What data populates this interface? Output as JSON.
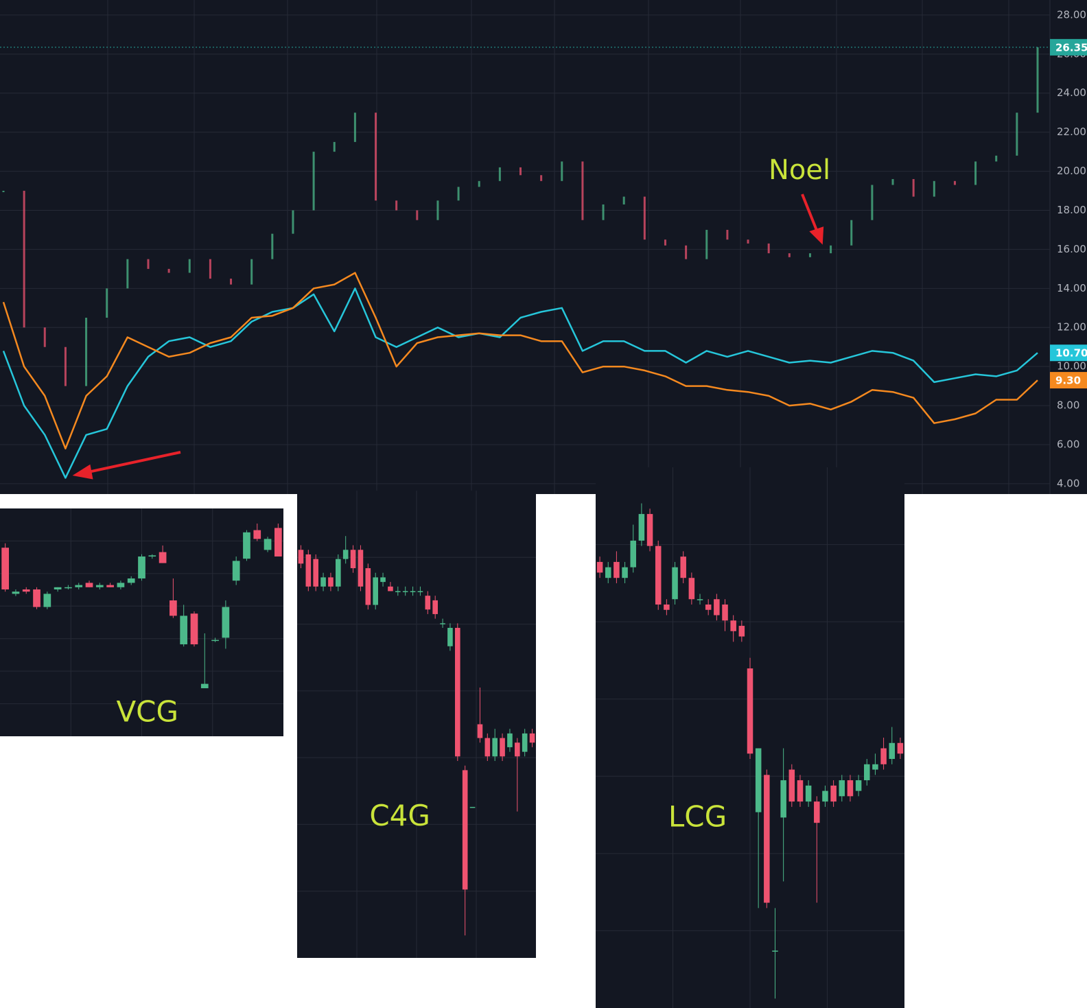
{
  "chart_data": [
    {
      "type": "line",
      "ylim": [
        3.47,
        28.77
      ],
      "yticks": [
        {
          "value": 4,
          "label": "4.00"
        },
        {
          "value": 6,
          "label": "6.00"
        },
        {
          "value": 8,
          "label": "8.00"
        },
        {
          "value": 10,
          "label": "10.00"
        },
        {
          "value": 12,
          "label": "12.00"
        },
        {
          "value": 14,
          "label": "14.00"
        },
        {
          "value": 16,
          "label": "16.00"
        },
        {
          "value": 18,
          "label": "18.00"
        },
        {
          "value": 20,
          "label": "20.00"
        },
        {
          "value": 22,
          "label": "22.00"
        },
        {
          "value": 24,
          "label": "24.00"
        },
        {
          "value": 26,
          "label": "26.00"
        },
        {
          "value": 28,
          "label": "28.00"
        }
      ],
      "grid": true,
      "series": [
        {
          "up_color": "#4cb98a",
          "down_color": "#ef5370",
          "label_color": "#26a69a",
          "values": [
            19,
            12,
            11,
            9,
            12.5,
            14,
            15.5,
            15,
            14.8,
            15.5,
            14.5,
            14.2,
            15.5,
            16.8,
            18,
            21,
            21.5,
            23,
            18.5,
            18,
            17.5,
            18.5,
            19.2,
            19.5,
            20.2,
            19.8,
            19.5,
            20.5,
            17.5,
            18.3,
            18.7,
            16.5,
            16.2,
            15.5,
            17,
            16.5,
            16.3,
            15.8,
            15.6,
            15.8,
            16.2,
            17.5,
            19.3,
            19.6,
            18.7,
            19.5,
            19.3,
            20.5,
            20.8,
            23,
            26.35
          ],
          "value_labels": [
            null,
            null,
            null,
            null,
            null,
            null,
            null,
            null,
            null,
            null,
            null,
            null,
            null,
            null,
            null,
            null,
            null,
            null,
            null,
            null,
            null,
            null,
            null,
            null,
            null,
            null,
            null,
            null,
            null,
            null,
            null,
            null,
            null,
            null,
            null,
            null,
            null,
            null,
            null,
            null,
            null,
            null,
            null,
            null,
            null,
            null,
            null,
            null,
            null,
            null,
            "26.35"
          ]
        },
        {
          "color": "#26c6da",
          "values": [
            10.8,
            8,
            6.5,
            4.3,
            6.5,
            6.8,
            9,
            10.5,
            11.3,
            11.5,
            11,
            11.3,
            12.3,
            12.8,
            13,
            13.7,
            11.8,
            14,
            11.5,
            11,
            11.5,
            12,
            11.5,
            11.7,
            11.5,
            12.5,
            12.8,
            13,
            10.8,
            11.3,
            11.3,
            10.8,
            10.8,
            10.2,
            10.8,
            10.5,
            10.8,
            10.5,
            10.2,
            10.3,
            10.2,
            10.5,
            10.8,
            10.7,
            10.3,
            9.2,
            9.4,
            9.6,
            9.5,
            9.8,
            10.7
          ],
          "value_labels": [
            null,
            null,
            null,
            null,
            null,
            null,
            null,
            null,
            null,
            null,
            null,
            null,
            null,
            null,
            null,
            null,
            null,
            null,
            null,
            null,
            null,
            null,
            null,
            null,
            null,
            null,
            null,
            null,
            null,
            null,
            null,
            null,
            null,
            null,
            null,
            null,
            null,
            null,
            null,
            null,
            null,
            null,
            null,
            null,
            null,
            null,
            null,
            null,
            null,
            null,
            "10.70"
          ]
        },
        {
          "color": "#f5891f",
          "values": [
            13.3,
            10,
            8.5,
            5.8,
            8.5,
            9.5,
            11.5,
            11,
            10.5,
            10.7,
            11.2,
            11.5,
            12.5,
            12.6,
            13,
            14,
            14.2,
            14.8,
            12.5,
            10,
            11.2,
            11.5,
            11.6,
            11.7,
            11.6,
            11.6,
            11.3,
            11.3,
            9.7,
            10,
            10,
            9.8,
            9.5,
            9,
            9,
            8.8,
            8.7,
            8.5,
            8,
            8.1,
            7.8,
            8.2,
            8.8,
            8.7,
            8.4,
            7.1,
            7.3,
            7.6,
            8.3,
            8.3,
            9.3
          ],
          "value_labels": [
            null,
            null,
            null,
            null,
            null,
            null,
            null,
            null,
            null,
            null,
            null,
            null,
            null,
            null,
            null,
            null,
            null,
            null,
            null,
            null,
            null,
            null,
            null,
            null,
            null,
            null,
            null,
            null,
            null,
            null,
            null,
            null,
            null,
            null,
            null,
            null,
            null,
            null,
            null,
            null,
            null,
            null,
            null,
            null,
            null,
            null,
            null,
            null,
            null,
            null,
            "9.30"
          ]
        }
      ],
      "annotations": [
        "Noel"
      ]
    },
    {
      "type": "candlestick",
      "title": "VCG",
      "ylim": [
        0,
        100
      ],
      "up_color": "#4cb98a",
      "down_color": "#ef5370",
      "open": [
        84,
        63,
        65,
        65,
        57,
        65,
        66,
        66,
        68,
        66,
        67,
        66,
        68,
        70,
        80,
        82,
        60,
        40,
        54,
        20,
        42,
        43,
        69,
        79,
        92,
        83,
        93
      ],
      "high": [
        86,
        65,
        66,
        66,
        64,
        66,
        67,
        68,
        69,
        68,
        68,
        69,
        71,
        81,
        81,
        85,
        70,
        58,
        55,
        45,
        43,
        60,
        80,
        92,
        95,
        89,
        95
      ],
      "low": [
        64,
        62,
        63,
        56,
        56,
        64,
        65,
        65,
        66,
        65,
        66,
        65,
        67,
        69,
        79,
        77,
        52,
        39,
        39,
        20,
        41,
        38,
        67,
        78,
        87,
        82,
        80
      ],
      "close": [
        65,
        64,
        64,
        57,
        63,
        66,
        66,
        67,
        66,
        67,
        66,
        68,
        70,
        80,
        80.5,
        77,
        53,
        53,
        40,
        22,
        42,
        57,
        78,
        91,
        88,
        88,
        80
      ]
    },
    {
      "type": "candlestick",
      "title": "C4G",
      "ylim": [
        0,
        100
      ],
      "up_color": "#4cb98a",
      "down_color": "#ef5370",
      "open": [
        88,
        87,
        86,
        80,
        82,
        80,
        86,
        88,
        88,
        84,
        76,
        81,
        80,
        79,
        79,
        79,
        79,
        78,
        77,
        72,
        67,
        71,
        40,
        32,
        50,
        47,
        43,
        47,
        45,
        46,
        44,
        48
      ],
      "high": [
        89,
        88,
        87,
        83,
        83,
        87,
        91,
        89,
        89,
        85,
        83,
        83,
        81,
        80,
        80,
        80,
        80,
        79,
        78,
        73,
        72,
        72,
        41,
        32,
        58,
        48,
        49,
        48,
        49,
        47,
        49,
        49
      ],
      "low": [
        84,
        79,
        79,
        79,
        79,
        79,
        85,
        83,
        79,
        75,
        75,
        80,
        79,
        78,
        78,
        78,
        78,
        74,
        73,
        71,
        66,
        42,
        4,
        32,
        46,
        42,
        42,
        42,
        44,
        31,
        43,
        45
      ],
      "close": [
        85,
        80,
        80,
        82,
        80,
        86,
        88,
        84,
        80,
        76,
        82,
        82,
        79,
        79,
        79,
        79,
        79,
        75,
        74,
        72,
        71,
        43,
        14,
        32,
        47,
        43,
        47,
        43,
        48,
        43,
        48,
        46
      ]
    },
    {
      "type": "candlestick",
      "title": "LCG",
      "ylim": [
        0,
        100
      ],
      "up_color": "#4cb98a",
      "down_color": "#ef5370",
      "open": [
        83,
        80,
        83,
        80,
        82,
        87,
        92,
        86,
        75,
        76,
        84,
        80,
        76,
        75,
        76,
        75,
        72,
        71,
        63,
        36,
        43,
        10,
        35,
        44,
        42,
        38,
        38,
        38,
        41,
        39,
        42,
        40,
        42,
        44,
        48,
        46,
        49
      ],
      "high": [
        84,
        83,
        85,
        83,
        90,
        94,
        93,
        87,
        76,
        83,
        85,
        81,
        77,
        76,
        77,
        76,
        73,
        72,
        65,
        48,
        44,
        18,
        48,
        45,
        43,
        42,
        39,
        41,
        42,
        43,
        43,
        43,
        46,
        47,
        50,
        52,
        50
      ],
      "low": [
        80,
        79,
        79,
        79,
        81,
        86,
        85,
        74,
        73,
        75,
        79,
        75,
        75,
        73,
        72,
        70,
        68,
        68,
        46,
        18,
        18,
        1,
        23,
        37,
        37,
        37,
        19,
        37,
        37,
        38,
        38,
        39,
        41,
        43,
        44,
        45,
        46
      ],
      "close": [
        81,
        82,
        80,
        82,
        87,
        92,
        86,
        75,
        74,
        82,
        80,
        76,
        76,
        74,
        73,
        72,
        70,
        69,
        47,
        48,
        19,
        10,
        42,
        38,
        38,
        41,
        34,
        40,
        38,
        42,
        39,
        42,
        45,
        45,
        45,
        49,
        47
      ]
    }
  ]
}
